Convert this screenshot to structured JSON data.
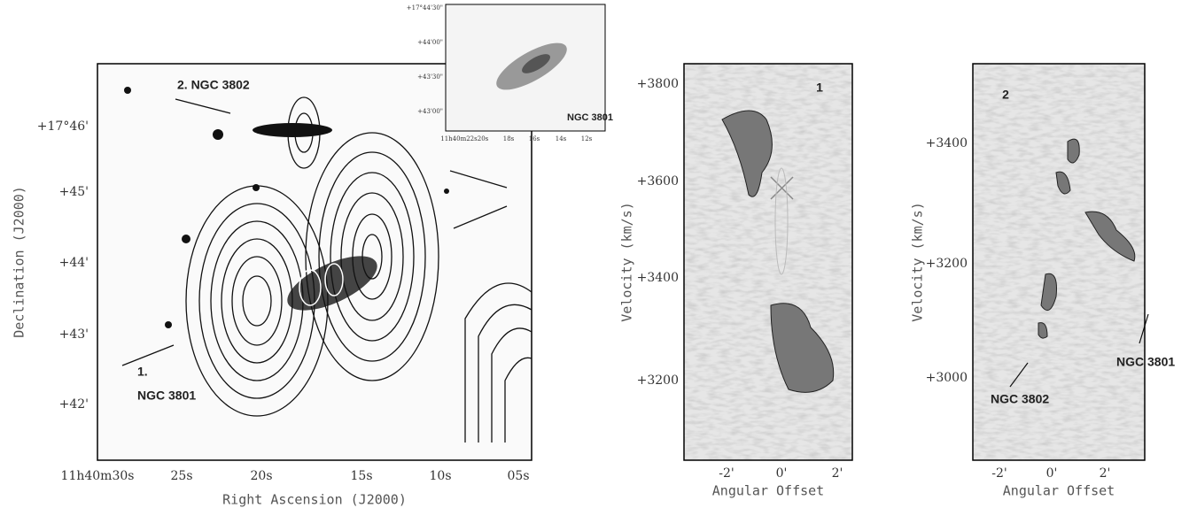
{
  "panels": [
    {
      "x_label": "Right Ascension (J2000)",
      "y_label": "Declination (J2000)",
      "x_ticks": [
        "11h40m30s",
        "25s",
        "20s",
        "15s",
        "10s",
        "05s"
      ],
      "y_ticks": [
        "+17°46'",
        "+45'",
        "+44'",
        "+43'",
        "+42'"
      ],
      "annotations": [
        "2. NGC 3802",
        "1.",
        "NGC 3801"
      ]
    },
    {
      "x_ticks": [
        "11h40m22s",
        "20s",
        "18s",
        "16s",
        "14s",
        "12s"
      ],
      "y_ticks": [
        "+17°44'30\"",
        "+44'00\"",
        "+43'30\"",
        "+43'00\""
      ],
      "annotations": [
        "NGC 3801"
      ]
    },
    {
      "x_label": "Angular Offset",
      "y_label": "Velocity (km/s)",
      "x_ticks": [
        "-2'",
        "0'",
        "2'"
      ],
      "y_ticks": [
        "+3800",
        "+3600",
        "+3400",
        "+3200"
      ],
      "annotations": [
        "1"
      ]
    },
    {
      "x_label": "Angular Offset",
      "y_label": "Velocity (km/s)",
      "x_ticks": [
        "-2'",
        "0'",
        "2'"
      ],
      "y_ticks": [
        "+3400",
        "+3200",
        "+3000"
      ],
      "annotations": [
        "2",
        "NGC 3802",
        "NGC 3801"
      ]
    }
  ]
}
